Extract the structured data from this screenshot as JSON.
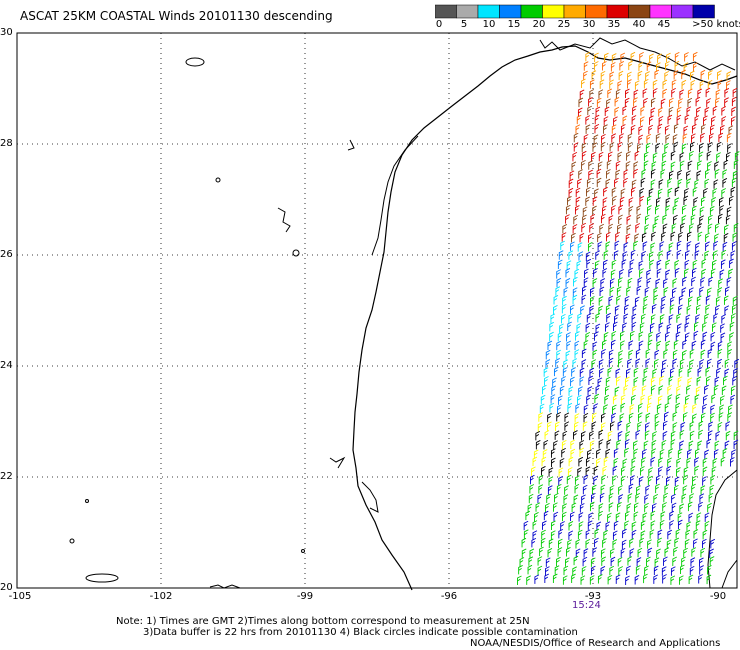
{
  "title": "ASCAT 25KM COASTAL Winds 20101130 descending",
  "legend": {
    "unit": "knots",
    "colors": [
      "#555555",
      "#aaaaaa",
      "#00e5ff",
      "#0080ff",
      "#00cc00",
      "#ffff00",
      "#ffaa00",
      "#ff6a00",
      "#dd0000",
      "#8b4513",
      "#ff33ff",
      "#9b30ff",
      "#0000aa"
    ],
    "labels": [
      "0",
      "5",
      "10",
      "15",
      "20",
      "25",
      "30",
      "35",
      "40",
      "45",
      ">50 knots"
    ]
  },
  "map": {
    "lat_ticks": [
      "30",
      "28",
      "26",
      "24",
      "22",
      "20"
    ],
    "lon_ticks": [
      "-105",
      "-102",
      "-99",
      "-96",
      "-93",
      "-90"
    ],
    "lat_range": [
      20,
      30
    ],
    "lon_range": [
      -105,
      -90
    ],
    "pass_time": "15:24"
  },
  "notes": {
    "line1": "Note: 1) Times are GMT 2)Times along bottom correspond to measurement at 25N",
    "line2": "3)Data buffer is 22 hrs from 20101130 4) Black circles indicate possible contamination",
    "line3": "NOAA/NESDIS/Office of Research and Applications"
  }
}
